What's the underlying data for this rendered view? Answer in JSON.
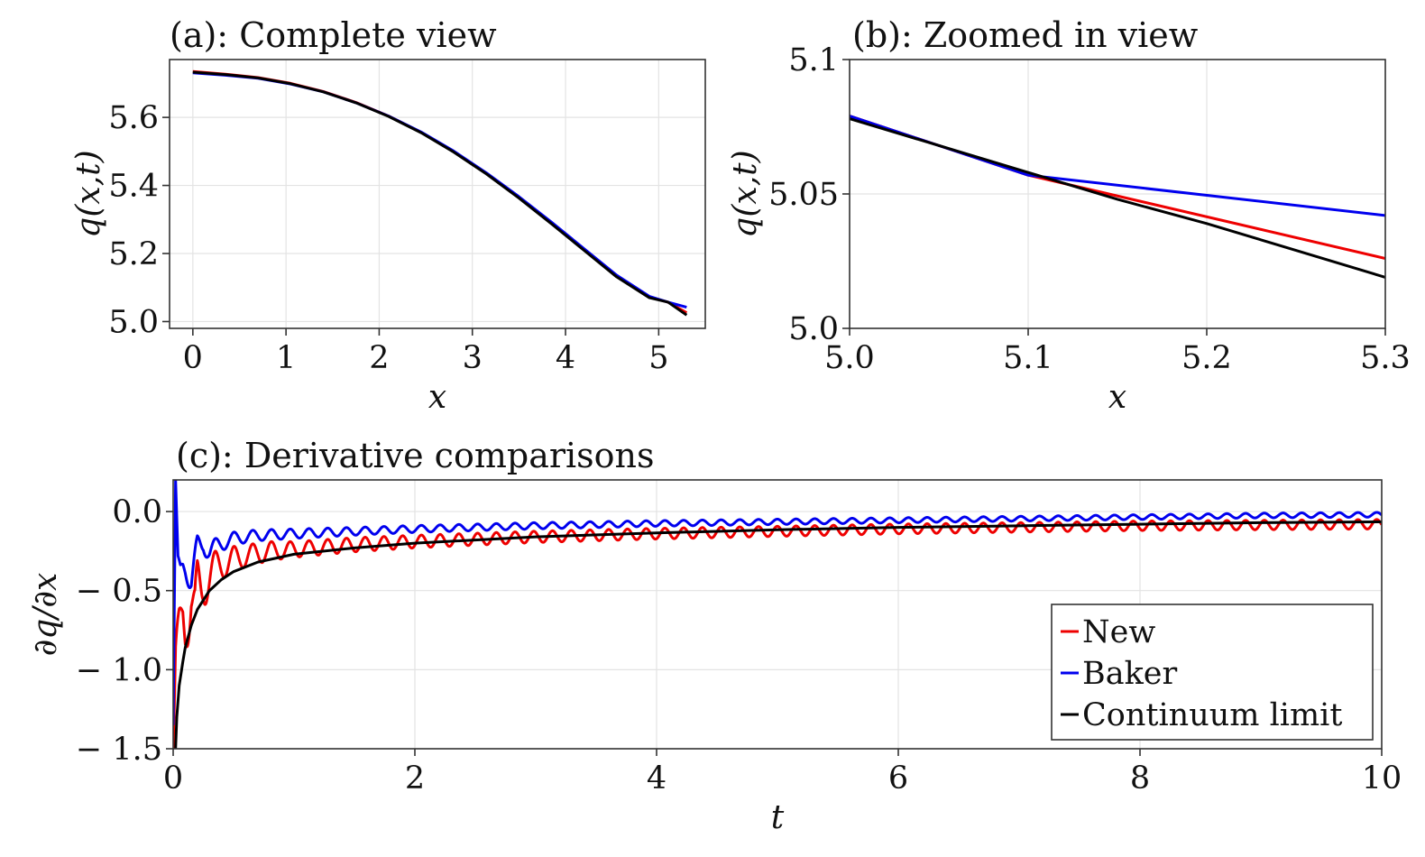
{
  "colors": {
    "new": "#ee0000",
    "baker": "#0000ee",
    "continuum": "#000000"
  },
  "chart_data": [
    {
      "id": "a",
      "type": "line",
      "title": "(a): Complete view",
      "xlabel": "x",
      "ylabel": "q(x,t)",
      "xlim": [
        -0.25,
        5.5
      ],
      "ylim": [
        4.98,
        5.77
      ],
      "xticks": [
        0,
        1,
        2,
        3,
        4,
        5
      ],
      "xtick_labels": [
        "0",
        "1",
        "2",
        "3",
        "4",
        "5"
      ],
      "yticks": [
        5.0,
        5.2,
        5.4,
        5.6
      ],
      "ytick_labels": [
        "5.0",
        "5.2",
        "5.4",
        "5.6"
      ],
      "grid": true,
      "series": [
        {
          "name": "New",
          "color_key": "new",
          "x": [
            0,
            0.35,
            0.7,
            1.05,
            1.4,
            1.75,
            2.1,
            2.45,
            2.8,
            3.15,
            3.5,
            3.85,
            4.2,
            4.55,
            4.9,
            5.1,
            5.3
          ],
          "y": [
            5.735,
            5.727,
            5.717,
            5.7,
            5.676,
            5.644,
            5.604,
            5.556,
            5.499,
            5.435,
            5.364,
            5.289,
            5.211,
            5.133,
            5.072,
            5.057,
            5.026
          ]
        },
        {
          "name": "Baker",
          "color_key": "baker",
          "x": [
            0,
            0.35,
            0.7,
            1.05,
            1.4,
            1.75,
            2.1,
            2.45,
            2.8,
            3.15,
            3.5,
            3.85,
            4.2,
            4.55,
            4.9,
            5.1,
            5.3
          ],
          "y": [
            5.731,
            5.724,
            5.715,
            5.698,
            5.675,
            5.643,
            5.604,
            5.557,
            5.501,
            5.437,
            5.367,
            5.292,
            5.214,
            5.136,
            5.074,
            5.057,
            5.042
          ]
        },
        {
          "name": "Continuum limit",
          "color_key": "continuum",
          "x": [
            0,
            0.35,
            0.7,
            1.05,
            1.4,
            1.75,
            2.1,
            2.45,
            2.8,
            3.15,
            3.5,
            3.85,
            4.2,
            4.55,
            4.9,
            5.1,
            5.3
          ],
          "y": [
            5.733,
            5.726,
            5.716,
            5.699,
            5.675,
            5.643,
            5.603,
            5.555,
            5.498,
            5.434,
            5.363,
            5.287,
            5.209,
            5.131,
            5.07,
            5.057,
            5.019
          ]
        }
      ]
    },
    {
      "id": "b",
      "type": "line",
      "title": "(b): Zoomed in view",
      "xlabel": "x",
      "ylabel": "q(x,t)",
      "xlim": [
        5.0,
        5.3
      ],
      "ylim": [
        5.0,
        5.1
      ],
      "xticks": [
        5.0,
        5.1,
        5.2,
        5.3
      ],
      "xtick_labels": [
        "5.0",
        "5.1",
        "5.2",
        "5.3"
      ],
      "yticks": [
        5.0,
        5.05,
        5.1
      ],
      "ytick_labels": [
        "5.0",
        "5.05",
        "5.1"
      ],
      "grid": true,
      "series": [
        {
          "name": "New",
          "color_key": "new",
          "x": [
            5.0,
            5.1,
            5.3
          ],
          "y": [
            5.079,
            5.057,
            5.026
          ]
        },
        {
          "name": "Baker",
          "color_key": "baker",
          "x": [
            5.0,
            5.1,
            5.3
          ],
          "y": [
            5.079,
            5.057,
            5.042
          ]
        },
        {
          "name": "Continuum limit",
          "color_key": "continuum",
          "x": [
            5.0,
            5.05,
            5.1,
            5.15,
            5.2,
            5.25,
            5.3
          ],
          "y": [
            5.078,
            5.068,
            5.058,
            5.048,
            5.039,
            5.029,
            5.019
          ]
        }
      ]
    },
    {
      "id": "c",
      "type": "line",
      "title": "(c): Derivative comparisons",
      "xlabel": "t",
      "ylabel": "∂q/∂x",
      "xlim": [
        0,
        10
      ],
      "ylim": [
        -1.5,
        0.2
      ],
      "xticks": [
        0,
        2,
        4,
        6,
        8,
        10
      ],
      "xtick_labels": [
        "0",
        "2",
        "4",
        "6",
        "8",
        "10"
      ],
      "yticks": [
        0.0,
        -0.5,
        -1.0,
        -1.5
      ],
      "ytick_labels": [
        "0.0",
        "− 0.5",
        "− 1.0",
        "− 1.5"
      ],
      "grid": true,
      "legend": {
        "position": "bottom-right",
        "entries": [
          "New",
          "Baker",
          "Continuum limit"
        ]
      },
      "series": [
        {
          "name": "New",
          "color_key": "new",
          "t": [
            0,
            0.02,
            0.05,
            0.08,
            0.1,
            0.12,
            0.15,
            0.18,
            0.2,
            0.25,
            0.3,
            0.35,
            0.4,
            0.5,
            0.6,
            0.8,
            1.0,
            1.5,
            2,
            3,
            4,
            5,
            6,
            7,
            8,
            9,
            10
          ],
          "center": [
            -1.5,
            -1.0,
            -0.75,
            -0.62,
            -0.72,
            -0.65,
            -0.55,
            -0.75,
            -0.6,
            -0.45,
            -0.4,
            -0.35,
            -0.34,
            -0.3,
            -0.28,
            -0.25,
            -0.24,
            -0.21,
            -0.19,
            -0.16,
            -0.14,
            -0.125,
            -0.11,
            -0.1,
            -0.09,
            -0.085,
            -0.08
          ],
          "amplitude": [
            0,
            0.2,
            0.15,
            0.15,
            0.15,
            0.2,
            0.25,
            0.3,
            0.3,
            0.17,
            0.13,
            0.1,
            0.09,
            0.08,
            0.07,
            0.06,
            0.05,
            0.045,
            0.04,
            0.036,
            0.034,
            0.032,
            0.031,
            0.03,
            0.03,
            0.03,
            0.03
          ],
          "oscillation_period": 0.155
        },
        {
          "name": "Baker",
          "color_key": "baker",
          "t": [
            0,
            0.02,
            0.04,
            0.06,
            0.08,
            0.1,
            0.15,
            0.2,
            0.25,
            0.3,
            0.4,
            0.5,
            0.7,
            1.0,
            1.5,
            2,
            3,
            4,
            5,
            6,
            7,
            8,
            9,
            10
          ],
          "center": [
            -1.35,
            0.2,
            -0.3,
            -0.35,
            -0.33,
            -0.35,
            -0.45,
            -0.25,
            -0.2,
            -0.25,
            -0.2,
            -0.17,
            -0.15,
            -0.14,
            -0.125,
            -0.11,
            -0.09,
            -0.075,
            -0.065,
            -0.055,
            -0.045,
            -0.035,
            -0.025,
            -0.02
          ],
          "amplitude": [
            0,
            0,
            0.02,
            0.02,
            0.03,
            0.05,
            0.1,
            0.1,
            0.07,
            0.06,
            0.05,
            0.04,
            0.035,
            0.03,
            0.025,
            0.022,
            0.02,
            0.018,
            0.017,
            0.016,
            0.015,
            0.015,
            0.015,
            0.015
          ],
          "oscillation_period": 0.155
        },
        {
          "name": "Continuum limit",
          "color_key": "continuum",
          "t": [
            0.02,
            0.03,
            0.05,
            0.08,
            0.1,
            0.15,
            0.2,
            0.3,
            0.4,
            0.5,
            0.7,
            1.0,
            1.5,
            2,
            3,
            4,
            5,
            6,
            7,
            8,
            9,
            10
          ],
          "y": [
            -1.5,
            -1.3,
            -1.1,
            -0.95,
            -0.86,
            -0.72,
            -0.62,
            -0.5,
            -0.43,
            -0.38,
            -0.32,
            -0.27,
            -0.23,
            -0.2,
            -0.16,
            -0.135,
            -0.115,
            -0.1,
            -0.09,
            -0.08,
            -0.07,
            -0.065
          ]
        }
      ]
    }
  ]
}
